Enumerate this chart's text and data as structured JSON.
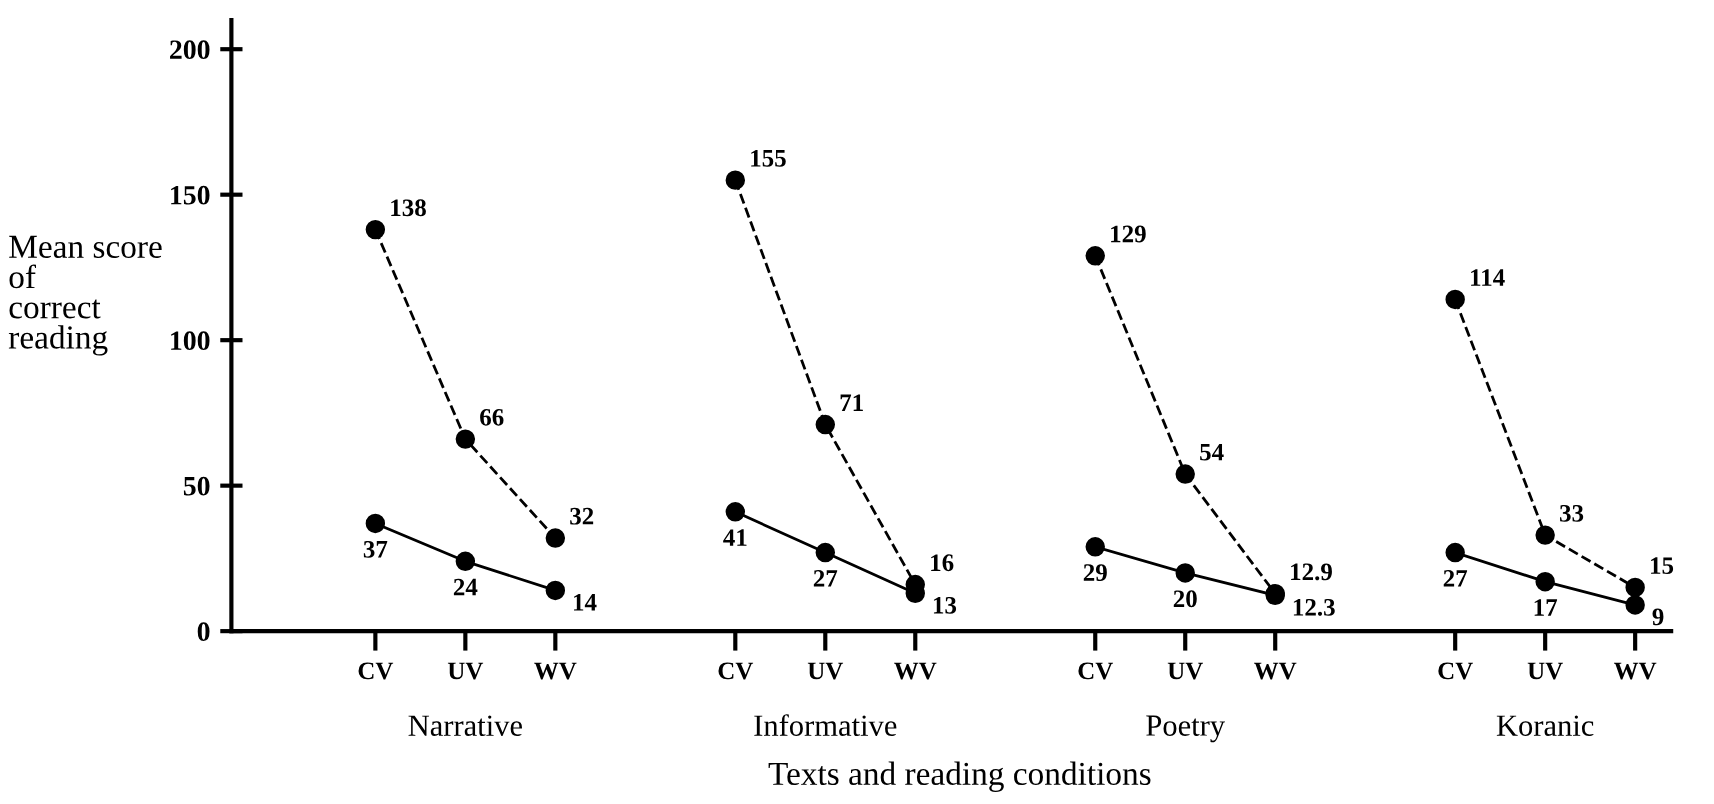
{
  "chart_data": {
    "type": "line",
    "ylabel": "Mean score\nof\ncorrect\nreading",
    "annotations": [
      "Narrative",
      "Informative",
      "Poetry",
      "Koranic",
      "Texts and reading conditions"
    ],
    "categories": [
      "CV",
      "UV",
      "WV",
      null,
      "CV",
      "UV",
      "WV",
      null,
      "CV",
      "UV",
      "WV",
      null,
      "CV",
      "UV",
      "WV"
    ],
    "ylim": [
      0,
      210
    ],
    "yticks": [
      0,
      50,
      100,
      150,
      200
    ],
    "marker": "circle",
    "data_labels": true,
    "series": [
      {
        "color": "#000000",
        "line_style": "dashed",
        "values": [
          138,
          66,
          32,
          null,
          155,
          71,
          16,
          null,
          129,
          54,
          12.9,
          null,
          114,
          33,
          15
        ]
      },
      {
        "color": "#000000",
        "line_style": "solid",
        "values": [
          37,
          24,
          14,
          null,
          41,
          27,
          13,
          null,
          29,
          20,
          12.3,
          null,
          27,
          17,
          9
        ]
      }
    ]
  }
}
